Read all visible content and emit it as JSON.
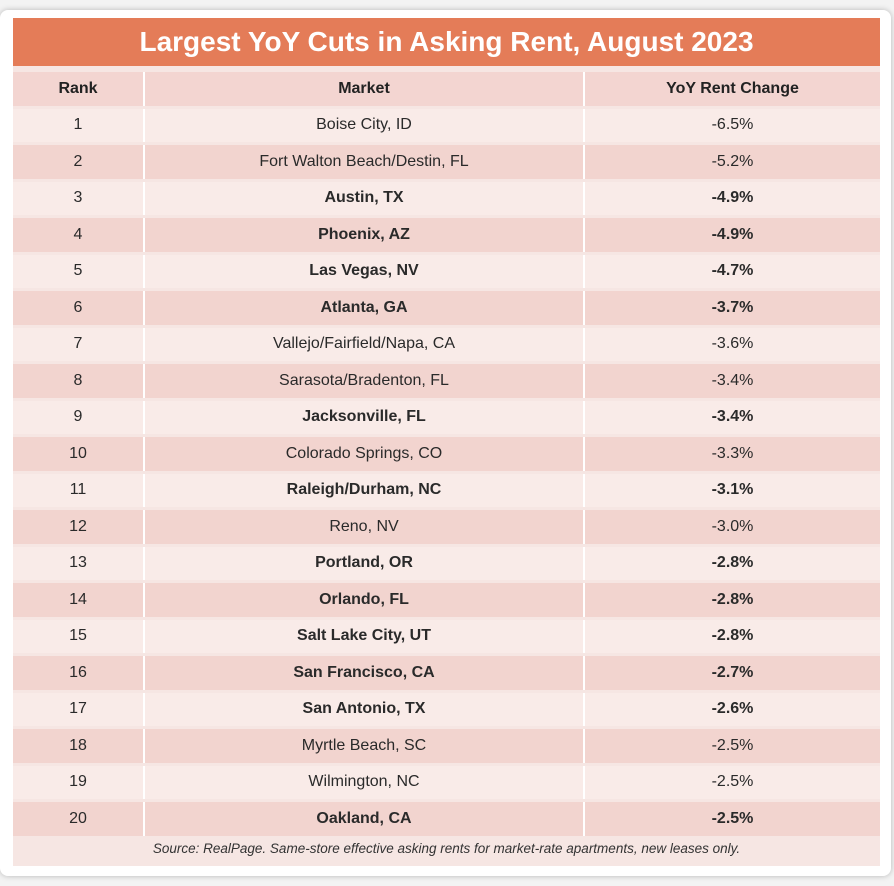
{
  "title": "Largest YoY Cuts in Asking Rent, August 2023",
  "headers": {
    "rank": "Rank",
    "market": "Market",
    "change": "YoY Rent Change"
  },
  "rows": [
    {
      "rank": "1",
      "market": "Boise City, ID",
      "change": "-6.5%",
      "bold": false
    },
    {
      "rank": "2",
      "market": "Fort Walton Beach/Destin, FL",
      "change": "-5.2%",
      "bold": false
    },
    {
      "rank": "3",
      "market": "Austin, TX",
      "change": "-4.9%",
      "bold": true
    },
    {
      "rank": "4",
      "market": "Phoenix, AZ",
      "change": "-4.9%",
      "bold": true
    },
    {
      "rank": "5",
      "market": "Las Vegas, NV",
      "change": "-4.7%",
      "bold": true
    },
    {
      "rank": "6",
      "market": "Atlanta, GA",
      "change": "-3.7%",
      "bold": true
    },
    {
      "rank": "7",
      "market": "Vallejo/Fairfield/Napa, CA",
      "change": "-3.6%",
      "bold": false
    },
    {
      "rank": "8",
      "market": "Sarasota/Bradenton, FL",
      "change": "-3.4%",
      "bold": false
    },
    {
      "rank": "9",
      "market": "Jacksonville, FL",
      "change": "-3.4%",
      "bold": true
    },
    {
      "rank": "10",
      "market": "Colorado Springs, CO",
      "change": "-3.3%",
      "bold": false
    },
    {
      "rank": "11",
      "market": "Raleigh/Durham, NC",
      "change": "-3.1%",
      "bold": true
    },
    {
      "rank": "12",
      "market": "Reno, NV",
      "change": "-3.0%",
      "bold": false
    },
    {
      "rank": "13",
      "market": "Portland, OR",
      "change": "-2.8%",
      "bold": true
    },
    {
      "rank": "14",
      "market": "Orlando, FL",
      "change": "-2.8%",
      "bold": true
    },
    {
      "rank": "15",
      "market": "Salt Lake City, UT",
      "change": "-2.8%",
      "bold": true
    },
    {
      "rank": "16",
      "market": "San Francisco, CA",
      "change": "-2.7%",
      "bold": true
    },
    {
      "rank": "17",
      "market": "San Antonio, TX",
      "change": "-2.6%",
      "bold": true
    },
    {
      "rank": "18",
      "market": "Myrtle Beach, SC",
      "change": "-2.5%",
      "bold": false
    },
    {
      "rank": "19",
      "market": "Wilmington, NC",
      "change": "-2.5%",
      "bold": false
    },
    {
      "rank": "20",
      "market": "Oakland, CA",
      "change": "-2.5%",
      "bold": true
    }
  ],
  "source": "Source: RealPage. Same-store effective asking rents for market-rate apartments, new leases only.",
  "colors": {
    "title_bar": "#e47c58",
    "row_dark": "#f2d4cf",
    "row_light": "#f9ebe8"
  }
}
